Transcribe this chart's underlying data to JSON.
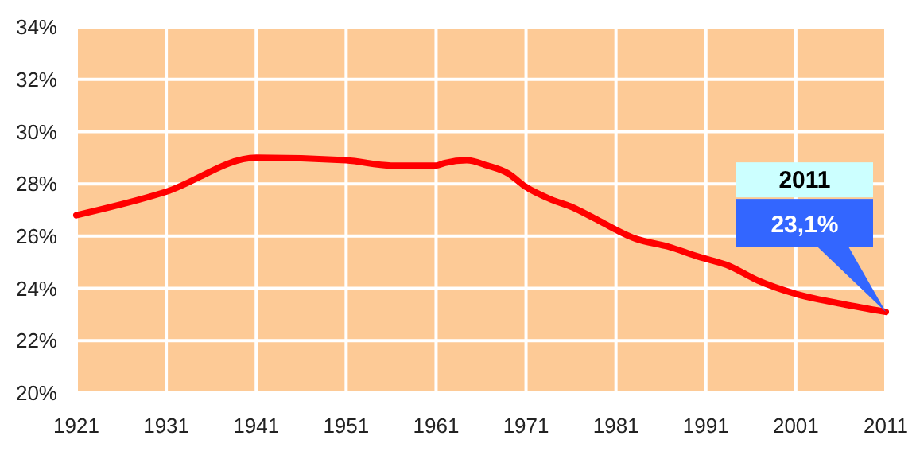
{
  "chart_data": {
    "type": "line",
    "x": [
      1921,
      1931,
      1941,
      1951,
      1956,
      1961,
      1962,
      1964.4,
      1966.7,
      1969,
      1970.9,
      1973.8,
      1976.2,
      1978.5,
      1983.2,
      1986.8,
      1990.3,
      1993.3,
      1996.8,
      2000.9,
      2006.2,
      2011
    ],
    "series": [
      {
        "color": "#ff0000",
        "values": [
          26.8,
          27.7,
          29.0,
          28.9,
          28.7,
          28.7,
          28.8,
          28.9,
          28.7,
          28.4,
          27.9,
          27.4,
          27.1,
          26.7,
          25.9,
          25.6,
          25.2,
          24.9,
          24.3,
          23.8,
          23.4,
          23.1
        ]
      }
    ],
    "xlim": [
      1921,
      2011
    ],
    "xticks": [
      1921,
      1931,
      1941,
      1951,
      1961,
      1971,
      1981,
      1991,
      2001,
      2011
    ],
    "ylim": [
      20,
      34
    ],
    "yticks": [
      {
        "value": 20,
        "label": "20%"
      },
      {
        "value": 22,
        "label": "22%"
      },
      {
        "value": 24,
        "label": "24%"
      },
      {
        "value": 26,
        "label": "26%"
      },
      {
        "value": 28,
        "label": "28%"
      },
      {
        "value": 30,
        "label": "30%"
      },
      {
        "value": 32,
        "label": "32%"
      },
      {
        "value": 34,
        "label": "34%"
      }
    ],
    "grid": true,
    "marker": "none",
    "line_style": "solid",
    "annotations": [
      "2011",
      "23,1%"
    ]
  }
}
